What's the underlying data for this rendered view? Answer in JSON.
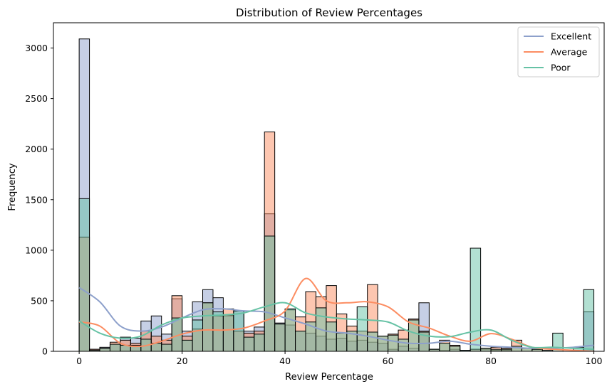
{
  "chart_data": {
    "type": "histogram",
    "title": "Distribution of Review Percentages",
    "xlabel": "Review Percentage",
    "ylabel": "Frequency",
    "xlim": [
      -5,
      102
    ],
    "ylim": [
      0,
      3250
    ],
    "xticks": [
      0,
      20,
      40,
      60,
      80,
      100
    ],
    "yticks": [
      0,
      500,
      1000,
      1500,
      2000,
      2500,
      3000
    ],
    "bin_width": 2,
    "bin_starts": [
      0,
      2,
      4,
      6,
      8,
      10,
      12,
      14,
      16,
      18,
      20,
      22,
      24,
      26,
      28,
      30,
      32,
      34,
      36,
      38,
      40,
      42,
      44,
      46,
      48,
      50,
      52,
      54,
      56,
      58,
      60,
      62,
      64,
      66,
      68,
      70,
      72,
      74,
      76,
      78,
      80,
      82,
      84,
      86,
      88,
      90,
      92,
      94,
      96,
      98
    ],
    "legend_position": "upper right",
    "series": [
      {
        "name": "Excellent",
        "color": "#8da0cb",
        "values": [
          3090,
          20,
          40,
          70,
          140,
          130,
          300,
          350,
          170,
          520,
          200,
          490,
          610,
          530,
          350,
          400,
          200,
          240,
          1360,
          280,
          260,
          200,
          180,
          150,
          120,
          130,
          100,
          110,
          90,
          80,
          20,
          50,
          30,
          480,
          20,
          10,
          20,
          10,
          20,
          20,
          10,
          10,
          0,
          0,
          0,
          0,
          0,
          0,
          0,
          390
        ],
        "kde_y": [
          630,
          490,
          250,
          200,
          240,
          330,
          410,
          420,
          400,
          390,
          330,
          270,
          200,
          180,
          150,
          110,
          80,
          80,
          100,
          70,
          50,
          40,
          30,
          30,
          40,
          60,
          95
        ]
      },
      {
        "name": "Average",
        "color": "#fc8d62",
        "values": [
          1130,
          20,
          30,
          90,
          110,
          80,
          200,
          150,
          110,
          550,
          150,
          220,
          480,
          350,
          420,
          200,
          180,
          200,
          2170,
          270,
          410,
          340,
          590,
          540,
          650,
          370,
          250,
          200,
          660,
          150,
          170,
          210,
          320,
          200,
          20,
          110,
          60,
          0,
          20,
          30,
          40,
          30,
          110,
          30,
          20,
          0,
          0,
          0,
          0,
          0
        ],
        "kde_y": [
          290,
          250,
          80,
          50,
          100,
          170,
          210,
          210,
          230,
          300,
          400,
          720,
          500,
          480,
          490,
          440,
          290,
          230,
          150,
          100,
          175,
          120,
          40,
          20,
          10,
          0,
          0
        ]
      },
      {
        "name": "Poor",
        "color": "#66c2a5",
        "values": [
          1510,
          10,
          30,
          70,
          60,
          60,
          120,
          80,
          70,
          330,
          110,
          310,
          480,
          390,
          360,
          400,
          140,
          170,
          1140,
          270,
          420,
          200,
          290,
          430,
          290,
          180,
          200,
          440,
          190,
          150,
          160,
          120,
          310,
          190,
          20,
          80,
          50,
          10,
          1020,
          30,
          20,
          20,
          50,
          30,
          20,
          10,
          180,
          0,
          40,
          610
        ],
        "kde_y": [
          300,
          180,
          130,
          150,
          260,
          330,
          350,
          360,
          380,
          440,
          480,
          380,
          340,
          320,
          310,
          290,
          200,
          150,
          145,
          190,
          210,
          110,
          40,
          40,
          30,
          20,
          110
        ]
      }
    ]
  }
}
